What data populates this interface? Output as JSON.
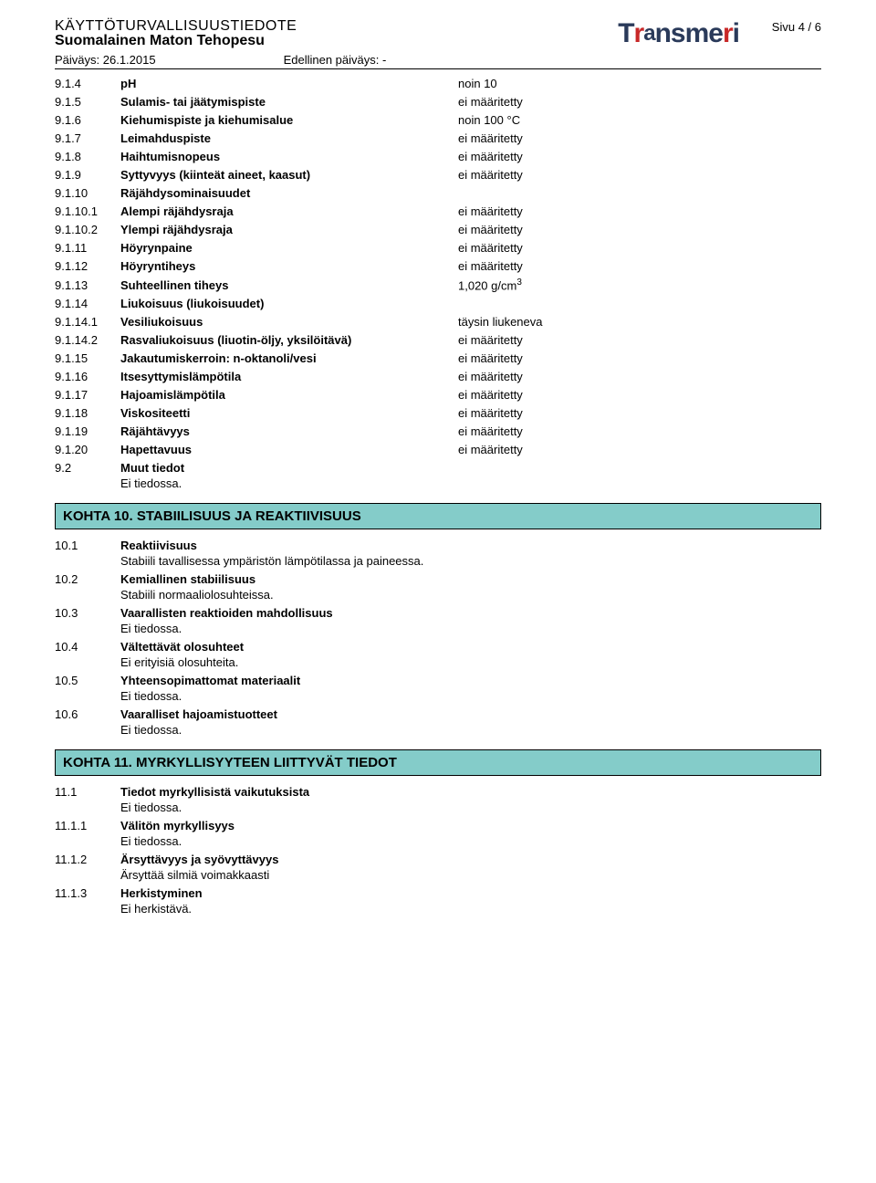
{
  "header": {
    "doc_title": "KÄYTTÖTURVALLISUUSTIEDOTE",
    "product": "Suomalainen Maton Tehopesu",
    "date_label": "Päiväys: 26.1.2015",
    "prev_date_label": "Edellinen päiväys: -",
    "page": "Sivu 4 / 6",
    "logo_text": "Transmeri"
  },
  "rows9": [
    {
      "num": "9.1.4",
      "label": "pH",
      "val": "noin 10"
    },
    {
      "num": "9.1.5",
      "label": "Sulamis- tai jäätymispiste",
      "val": "ei määritetty"
    },
    {
      "num": "9.1.6",
      "label": "Kiehumispiste ja kiehumisalue",
      "val": "noin 100 °C"
    },
    {
      "num": "9.1.7",
      "label": "Leimahduspiste",
      "val": "ei määritetty"
    },
    {
      "num": "9.1.8",
      "label": "Haihtumisnopeus",
      "val": "ei määritetty"
    },
    {
      "num": "9.1.9",
      "label": "Syttyvyys (kiinteät aineet, kaasut)",
      "val": "ei määritetty"
    },
    {
      "num": "9.1.10",
      "label": "Räjähdysominaisuudet",
      "val": ""
    },
    {
      "num": "9.1.10.1",
      "label": "Alempi räjähdysraja",
      "val": "ei määritetty"
    },
    {
      "num": "9.1.10.2",
      "label": "Ylempi räjähdysraja",
      "val": "ei määritetty"
    },
    {
      "num": "9.1.11",
      "label": "Höyrynpaine",
      "val": "ei määritetty"
    },
    {
      "num": "9.1.12",
      "label": "Höyryntiheys",
      "val": "ei määritetty"
    },
    {
      "num": "9.1.13",
      "label": "Suhteellinen tiheys",
      "val": "1,020 g/cm",
      "sup": "3"
    },
    {
      "num": "9.1.14",
      "label": "Liukoisuus (liukoisuudet)",
      "val": ""
    },
    {
      "num": "9.1.14.1",
      "label": "Vesiliukoisuus",
      "val": "täysin liukeneva"
    },
    {
      "num": "9.1.14.2",
      "label": "Rasvaliukoisuus (liuotin-öljy, yksilöitävä)",
      "val": "ei määritetty"
    },
    {
      "num": "9.1.15",
      "label": "Jakautumiskerroin: n-oktanoli/vesi",
      "val": "ei määritetty"
    },
    {
      "num": "9.1.16",
      "label": "Itsesyttymislämpötila",
      "val": "ei määritetty"
    },
    {
      "num": "9.1.17",
      "label": "Hajoamislämpötila",
      "val": "ei määritetty"
    },
    {
      "num": "9.1.18",
      "label": "Viskositeetti",
      "val": "ei määritetty"
    },
    {
      "num": "9.1.19",
      "label": "Räjähtävyys",
      "val": "ei määritetty"
    },
    {
      "num": "9.1.20",
      "label": "Hapettavuus",
      "val": "ei määritetty"
    }
  ],
  "row9_2": {
    "num": "9.2",
    "label": "Muut tiedot",
    "body": "Ei tiedossa."
  },
  "section10": {
    "title": "KOHTA 10. STABIILISUUS JA REAKTIIVISUUS",
    "items": [
      {
        "num": "10.1",
        "label": "Reaktiivisuus",
        "body": "Stabiili tavallisessa ympäristön lämpötilassa ja paineessa."
      },
      {
        "num": "10.2",
        "label": "Kemiallinen stabiilisuus",
        "body": "Stabiili normaaliolosuhteissa."
      },
      {
        "num": "10.3",
        "label": "Vaarallisten reaktioiden mahdollisuus",
        "body": "Ei tiedossa."
      },
      {
        "num": "10.4",
        "label": "Vältettävät olosuhteet",
        "body": "Ei erityisiä olosuhteita."
      },
      {
        "num": "10.5",
        "label": "Yhteensopimattomat materiaalit",
        "body": "Ei tiedossa."
      },
      {
        "num": "10.6",
        "label": "Vaaralliset hajoamistuotteet",
        "body": "Ei tiedossa."
      }
    ]
  },
  "section11": {
    "title": "KOHTA 11. MYRKYLLISYYTEEN LIITTYVÄT TIEDOT",
    "items": [
      {
        "num": "11.1",
        "label": "Tiedot myrkyllisistä vaikutuksista",
        "body": "Ei tiedossa."
      },
      {
        "num": "11.1.1",
        "label": "Välitön myrkyllisyys",
        "body": "Ei tiedossa."
      },
      {
        "num": "11.1.2",
        "label": "Ärsyttävyys ja syövyttävyys",
        "body": "Ärsyttää silmiä voimakkaasti"
      },
      {
        "num": "11.1.3",
        "label": "Herkistyminen",
        "body": "Ei herkistävä."
      }
    ]
  },
  "colors": {
    "section_bg": "#84ccc9",
    "border": "#000000",
    "logo_blue": "#2a3a5a",
    "logo_red": "#c82828"
  }
}
